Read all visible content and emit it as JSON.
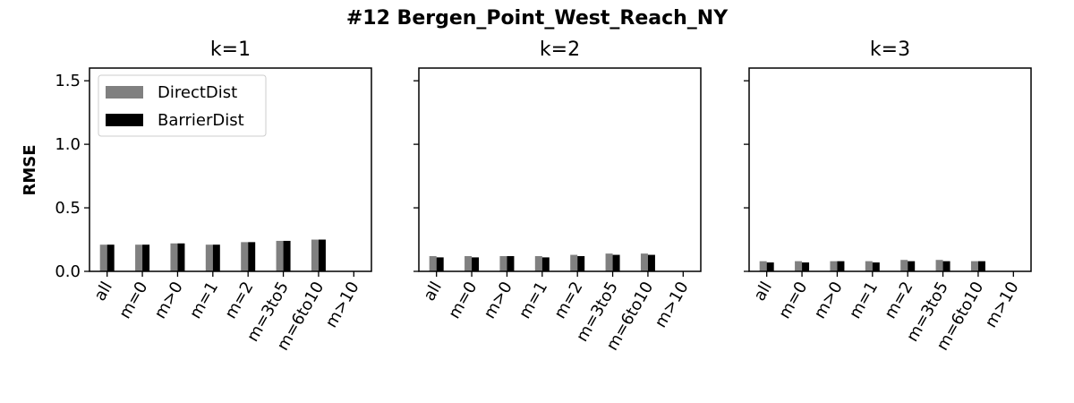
{
  "figure": {
    "suptitle": "#12 Bergen_Point_West_Reach_NY",
    "ylabel": "RMSE"
  },
  "colors": {
    "DirectDist": "#808080",
    "BarrierDist": "#000000"
  },
  "chart_data": [
    {
      "type": "bar",
      "title": "k=1",
      "categories": [
        "all",
        "m=0",
        "m>0",
        "m=1",
        "m=2",
        "m=3to5",
        "m=6to10",
        "m>10"
      ],
      "ylabel": "RMSE",
      "ylim": [
        0,
        1.6
      ],
      "yticks": [
        "0.0",
        "0.5",
        "1.0",
        "1.5"
      ],
      "legend": "upper-left",
      "series": [
        {
          "name": "DirectDist",
          "values": [
            0.21,
            0.21,
            0.22,
            0.21,
            0.23,
            0.24,
            0.25,
            null
          ]
        },
        {
          "name": "BarrierDist",
          "values": [
            0.21,
            0.21,
            0.22,
            0.21,
            0.23,
            0.24,
            0.25,
            null
          ]
        }
      ]
    },
    {
      "type": "bar",
      "title": "k=2",
      "categories": [
        "all",
        "m=0",
        "m>0",
        "m=1",
        "m=2",
        "m=3to5",
        "m=6to10",
        "m>10"
      ],
      "ylim": [
        0,
        1.6
      ],
      "series": [
        {
          "name": "DirectDist",
          "values": [
            0.12,
            0.12,
            0.12,
            0.12,
            0.13,
            0.14,
            0.14,
            null
          ]
        },
        {
          "name": "BarrierDist",
          "values": [
            0.11,
            0.11,
            0.12,
            0.11,
            0.12,
            0.13,
            0.13,
            null
          ]
        }
      ]
    },
    {
      "type": "bar",
      "title": "k=3",
      "categories": [
        "all",
        "m=0",
        "m>0",
        "m=1",
        "m=2",
        "m=3to5",
        "m=6to10",
        "m>10"
      ],
      "ylim": [
        0,
        1.6
      ],
      "series": [
        {
          "name": "DirectDist",
          "values": [
            0.08,
            0.08,
            0.08,
            0.08,
            0.09,
            0.09,
            0.08,
            null
          ]
        },
        {
          "name": "BarrierDist",
          "values": [
            0.07,
            0.07,
            0.08,
            0.07,
            0.08,
            0.08,
            0.08,
            null
          ]
        }
      ]
    }
  ]
}
